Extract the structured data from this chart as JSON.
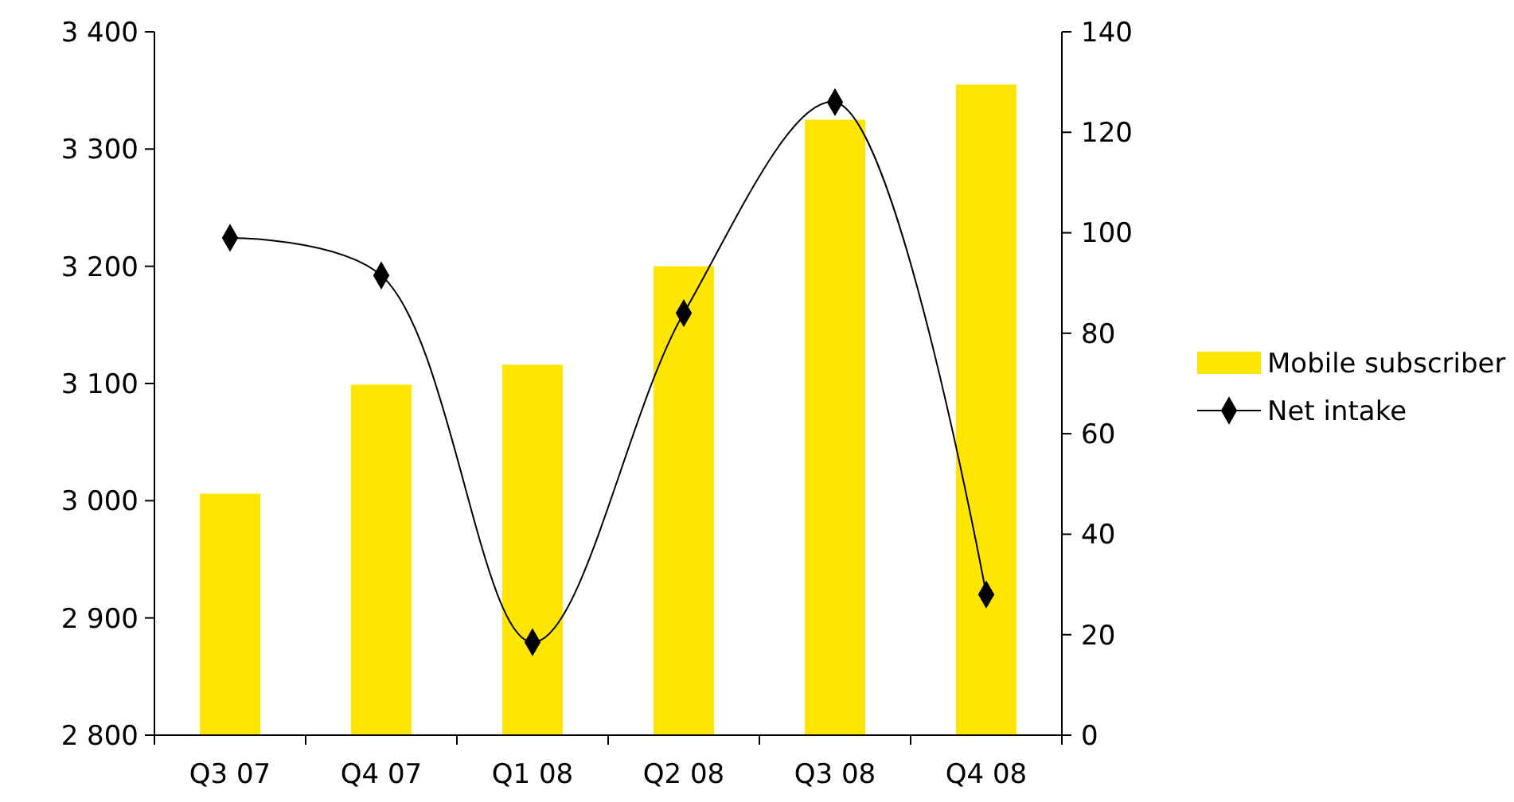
{
  "chart_data": {
    "type": "bar",
    "categories": [
      "Q3 07",
      "Q4 07",
      "Q1 08",
      "Q2 08",
      "Q3 08",
      "Q4 08"
    ],
    "series": [
      {
        "name": "Mobile subscriber",
        "color": "#ffe600",
        "values": [
          3006,
          3099,
          3116,
          3200,
          3325,
          3355
        ]
      },
      {
        "name": "Net intake",
        "type": "line",
        "axis": "y2",
        "color": "#000000",
        "marker": "diamond",
        "values": [
          99,
          91.5,
          18.5,
          84,
          126,
          28
        ]
      }
    ],
    "ylim": [
      2800,
      3400
    ],
    "yticks": [
      {
        "value": 2800,
        "label": "2 800"
      },
      {
        "value": 2900,
        "label": "2 900"
      },
      {
        "value": 3000,
        "label": "3 000"
      },
      {
        "value": 3100,
        "label": "3 100"
      },
      {
        "value": 3200,
        "label": "3 200"
      },
      {
        "value": 3300,
        "label": "3 300"
      },
      {
        "value": 3400,
        "label": "3 400"
      }
    ],
    "y2lim": [
      0,
      140
    ],
    "y2ticks": [
      0,
      20,
      40,
      60,
      80,
      100,
      120,
      140
    ],
    "legend": "right"
  }
}
